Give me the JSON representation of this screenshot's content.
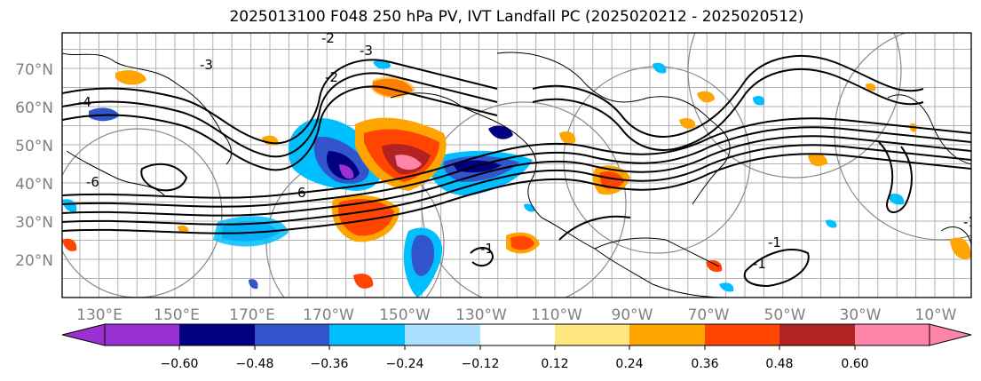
{
  "title": "2025013100 F048 250 hPa PV, IVT Landfall PC (2025020212 - 2025020512)",
  "map": {
    "lat_labels": [
      "70°N",
      "60°N",
      "50°N",
      "40°N",
      "30°N",
      "20°N"
    ],
    "lon_labels": [
      "130°E",
      "150°E",
      "170°E",
      "170°W",
      "150°W",
      "130°W",
      "110°W",
      "90°W",
      "70°W",
      "50°W",
      "30°W",
      "10°W"
    ],
    "contour_labels": [
      "-3",
      "-2",
      "-3",
      "-4",
      "-6",
      "6",
      "-2",
      "-1",
      "-1",
      "-1",
      "-1"
    ]
  },
  "colorbar": {
    "colors": [
      "#9b30d0",
      "#000080",
      "#3355cc",
      "#00bfff",
      "#aadfff",
      "#ffffff",
      "#ffe680",
      "#ffa500",
      "#ff4500",
      "#b22222",
      "#ff85a8"
    ],
    "tick_labels": [
      "−0.60",
      "−0.48",
      "−0.36",
      "−0.24",
      "−0.12",
      "0.12",
      "0.24",
      "0.36",
      "0.48",
      "0.60"
    ]
  }
}
